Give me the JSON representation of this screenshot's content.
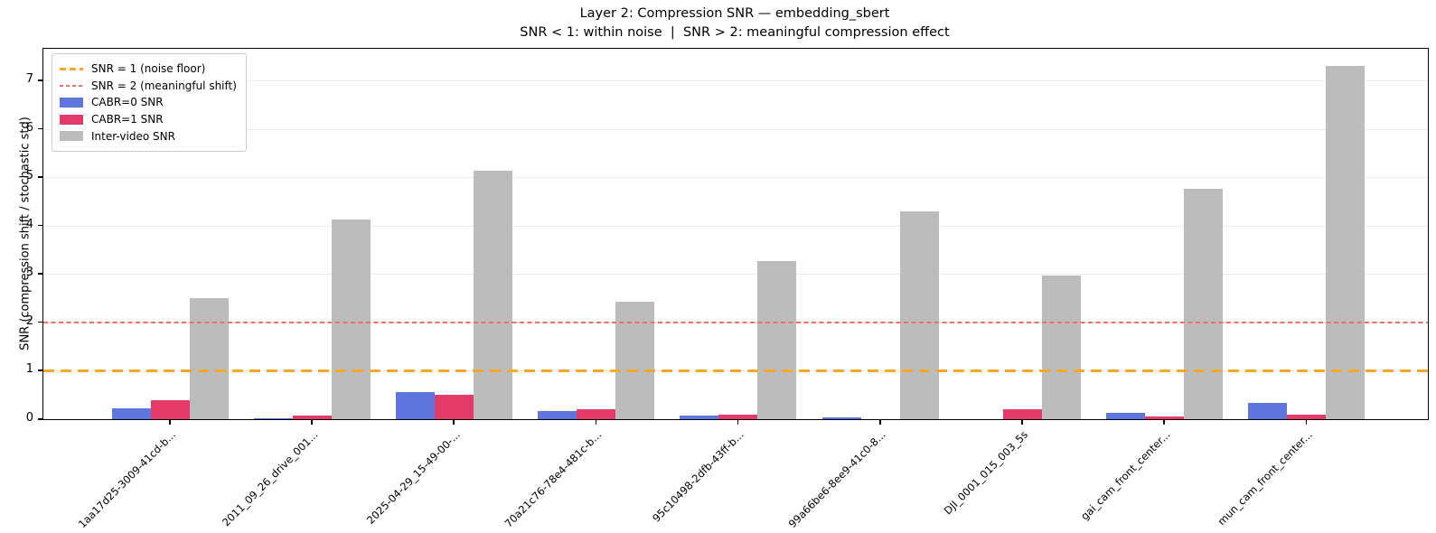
{
  "figure": {
    "title": "Layer 2: Compression SNR — embedding_sbert",
    "subtitle": "SNR < 1: within noise  |  SNR > 2: meaningful compression effect",
    "ylabel": "SNR (compression shift / stochastic std)"
  },
  "legend": {
    "entries": [
      {
        "swatch": "dash-long",
        "color": "#f7a829",
        "label": "SNR = 1 (noise floor)"
      },
      {
        "swatch": "dash-short",
        "color": "#f56b6b",
        "label": "SNR = 2 (meaningful shift)"
      },
      {
        "swatch": "rect",
        "color": "#5e76dd",
        "label": "CABR=0 SNR"
      },
      {
        "swatch": "rect",
        "color": "#e43a69",
        "label": "CABR=1 SNR"
      },
      {
        "swatch": "rect",
        "color": "#bcbcbc",
        "label": "Inter-video SNR"
      }
    ]
  },
  "chart_data": {
    "type": "bar",
    "title": "Layer 2: Compression SNR — embedding_sbert",
    "subtitle": "SNR < 1: within noise  |  SNR > 2: meaningful compression effect",
    "ylabel": "SNR (compression shift / stochastic std)",
    "xlabel": "",
    "categories": [
      "1aa17d25-3009-41cd-b...",
      "2011_09_26_drive_001...",
      "2025-04-29_15-49-00-...",
      "70a21c76-78e4-481c-b...",
      "95c10498-2dfb-43ff-b...",
      "99a66be6-8ee9-41c0-8...",
      "DJI_0001_015_003_5s",
      "gai_cam_front_center...",
      "mun_cam_front_center..."
    ],
    "series": [
      {
        "name": "CABR=0 SNR",
        "color": "#5e76dd",
        "values": [
          0.23,
          0.02,
          0.57,
          0.17,
          0.07,
          0.04,
          0.0,
          0.13,
          0.33
        ]
      },
      {
        "name": "CABR=1 SNR",
        "color": "#e43a69",
        "values": [
          0.4,
          0.07,
          0.5,
          0.21,
          0.09,
          0.0,
          0.21,
          0.06,
          0.1
        ]
      },
      {
        "name": "Inter-video SNR",
        "color": "#bcbcbc",
        "values": [
          2.5,
          4.13,
          5.13,
          2.43,
          3.27,
          4.29,
          2.97,
          4.76,
          7.3
        ]
      }
    ],
    "reference_lines": [
      {
        "y": 1,
        "label": "SNR = 1 (noise floor)",
        "color": "#f7a829",
        "style": "long"
      },
      {
        "y": 2,
        "label": "SNR = 2 (meaningful shift)",
        "color": "#f56b6b",
        "style": "short"
      }
    ],
    "yticks": [
      0,
      1,
      2,
      3,
      4,
      5,
      6,
      7
    ],
    "ylim": [
      0,
      7.66
    ],
    "grid": true,
    "legend_position": "upper-left"
  }
}
